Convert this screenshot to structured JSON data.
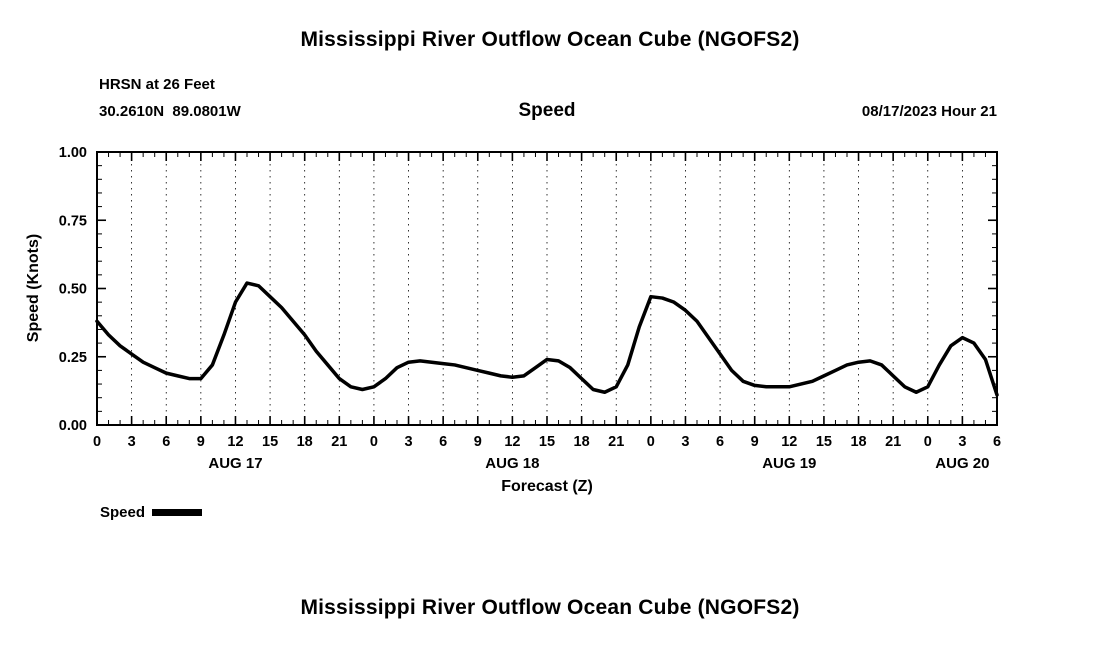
{
  "page": {
    "top_title": "Mississippi River Outflow Ocean Cube (NGOFS2)",
    "bottom_title": "Mississippi River Outflow Ocean Cube (NGOFS2)"
  },
  "header": {
    "station": "HRSN at 26 Feet",
    "coordinates": "30.2610N  89.0801W",
    "variable": "Speed",
    "datetime": "08/17/2023 Hour 21"
  },
  "chart_data": {
    "type": "line",
    "title": "Speed",
    "xlabel": "Forecast (Z)",
    "ylabel": "Speed (Knots)",
    "ylim": [
      0,
      1
    ],
    "xlim": [
      0,
      78
    ],
    "yticks": [
      0.0,
      0.25,
      0.5,
      0.75,
      1.0
    ],
    "ytick_labels": [
      "0.00",
      "0.25",
      "0.50",
      "0.75",
      "1.00"
    ],
    "ytick_minor_step": 0.05,
    "xtick_step_hours": 3,
    "xtick_labels": [
      "0",
      "3",
      "6",
      "9",
      "12",
      "15",
      "18",
      "21",
      "0",
      "3",
      "6",
      "9",
      "12",
      "15",
      "18",
      "21",
      "0",
      "3",
      "6",
      "9",
      "12",
      "15",
      "18",
      "21",
      "0",
      "3",
      "6"
    ],
    "day_labels": [
      {
        "label": "AUG 17",
        "center_hour": 12
      },
      {
        "label": "AUG 18",
        "center_hour": 36
      },
      {
        "label": "AUG 19",
        "center_hour": 60
      },
      {
        "label": "AUG 20",
        "center_hour": 75
      }
    ],
    "grid": "vertical-dashed",
    "line_color": "#000000",
    "legend": {
      "position": "bottom-left",
      "entries": [
        {
          "label": "Speed",
          "color": "#000000"
        }
      ]
    },
    "series": [
      {
        "name": "Speed",
        "x_start_hour": 0,
        "x_step_hours": 1,
        "values": [
          0.38,
          0.33,
          0.29,
          0.26,
          0.23,
          0.21,
          0.19,
          0.18,
          0.17,
          0.17,
          0.22,
          0.33,
          0.45,
          0.52,
          0.51,
          0.47,
          0.43,
          0.38,
          0.33,
          0.27,
          0.22,
          0.17,
          0.14,
          0.13,
          0.14,
          0.17,
          0.21,
          0.23,
          0.235,
          0.23,
          0.225,
          0.22,
          0.21,
          0.2,
          0.19,
          0.18,
          0.175,
          0.18,
          0.21,
          0.24,
          0.235,
          0.21,
          0.17,
          0.13,
          0.12,
          0.14,
          0.22,
          0.36,
          0.47,
          0.465,
          0.45,
          0.42,
          0.38,
          0.32,
          0.26,
          0.2,
          0.16,
          0.145,
          0.14,
          0.14,
          0.14,
          0.15,
          0.16,
          0.18,
          0.2,
          0.22,
          0.23,
          0.235,
          0.22,
          0.18,
          0.14,
          0.12,
          0.14,
          0.22,
          0.29,
          0.32,
          0.3,
          0.24,
          0.11
        ]
      }
    ]
  }
}
